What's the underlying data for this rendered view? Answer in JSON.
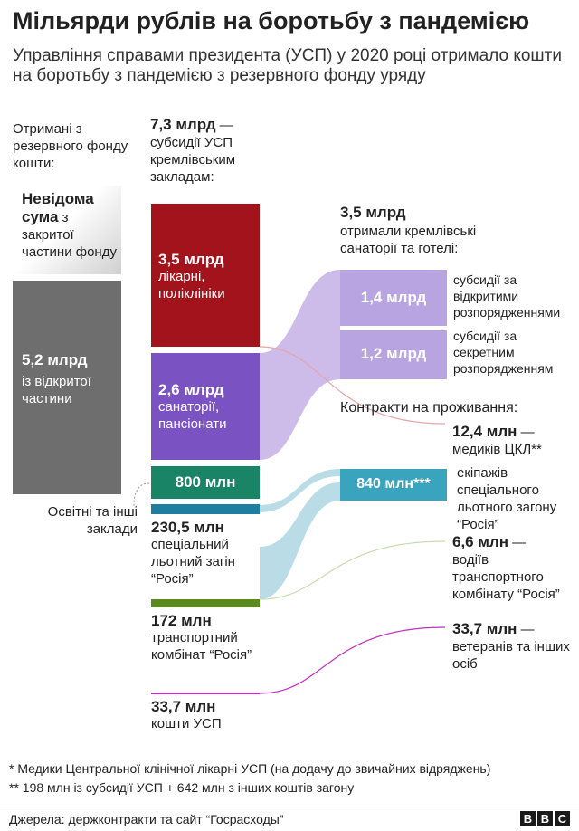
{
  "title": "Мільярди рублів на боротьбу з пандемією",
  "subtitle": "Управління справами президента (УСП) у 2020 році отримало кошти на боротьбу з пандемією з резервного фонду уряду",
  "colors": {
    "unknown_gradient": "#d0d0d0",
    "open_part": "#6e6e6e",
    "hospitals": "#a3131b",
    "sanatoria": "#7b52c2",
    "education": "#1a8466",
    "flight_unit": "#1e7ea0",
    "transport": "#5b8a1e",
    "usp": "#c22dc4",
    "flow_purple": "#cdbbea",
    "flow_blue": "#b9dce6",
    "open_orders": "#b9a4e2",
    "contracts_840": "#3aa3bd"
  },
  "chart_data": {
    "type": "sankey",
    "title": "Мільярди рублів на боротьбу з пандемією",
    "sources": {
      "header": "Отримані з резервного фонду кошти:",
      "items": [
        {
          "id": "unknown",
          "value_label": "Невідома сума",
          "label_bold": "Невідома сума",
          "label_rest": "з закритої частини фонду"
        },
        {
          "id": "open",
          "value": 5.2,
          "unit": "млрд",
          "value_label": "5,2 млрд",
          "label": "із відкритої частини"
        }
      ]
    },
    "allocations": {
      "header_value": "7,3 млрд",
      "header_dash": "—",
      "header_text": "субсидії УСП кремлівським закладам:",
      "items": [
        {
          "id": "hospitals",
          "value": 3.5,
          "unit": "млрд",
          "value_label": "3,5 млрд",
          "label": "лікарні, поліклініки"
        },
        {
          "id": "sanatoria",
          "value": 2.6,
          "unit": "млрд",
          "value_label": "2,6 млрд",
          "label": "санаторії, пансіонати"
        },
        {
          "id": "education",
          "value": 0.8,
          "unit": "млрд",
          "value_label": "800 млн",
          "label": "Освітні та інші заклади"
        },
        {
          "id": "flight",
          "value": 0.2305,
          "unit": "млрд",
          "value_label": "230,5 млн",
          "label": "спеціальний льотний загін “Росія”"
        },
        {
          "id": "transport",
          "value": 0.172,
          "unit": "млрд",
          "value_label": "172 млн",
          "label": "транспортний комбінат “Росія”"
        },
        {
          "id": "usp",
          "value": 0.0337,
          "unit": "млрд",
          "value_label": "33,7 млн",
          "label": "кошти УСП"
        }
      ]
    },
    "sanatoria_hotels": {
      "header_value": "3,5 млрд",
      "header_text": "отримали кремлівські санаторії та готелі:",
      "items": [
        {
          "value": 1.4,
          "unit": "млрд",
          "value_label": "1,4 млрд",
          "label": "субсидії за відкритими розпорядженнями"
        },
        {
          "value": 1.2,
          "unit": "млрд",
          "value_label": "1,2 млрд",
          "label": "субсидії за секретним розпорядженням"
        }
      ]
    },
    "contracts": {
      "header": "Контракти на проживання:",
      "items": [
        {
          "value": 12.4,
          "unit": "млн",
          "value_label": "12,4 млн",
          "dash": "—",
          "label": "медиків ЦКЛ**"
        },
        {
          "value": 840,
          "unit": "млн",
          "value_label": "840 млн***",
          "label": "екіпажів спеціального льотного загону “Росія”"
        },
        {
          "value": 6.6,
          "unit": "млн",
          "value_label": "6,6 млн",
          "dash": "—",
          "label": "водіїв транспортного комбінату “Росія”"
        },
        {
          "value": 33.7,
          "unit": "млн",
          "value_label": "33,7 млн",
          "dash": "—",
          "label": "ветеранів та інших осіб"
        }
      ]
    }
  },
  "footnotes": [
    "* Медики Центральної клінічної лікарні УСП (на додачу до звичайних відряджень)",
    "** 198 млн із субсидії УСП + 642 млн з інших коштів загону"
  ],
  "source": "Джерела: держконтракти та сайт “Госрасходы”",
  "logo": {
    "letters": [
      "B",
      "B",
      "C"
    ]
  }
}
